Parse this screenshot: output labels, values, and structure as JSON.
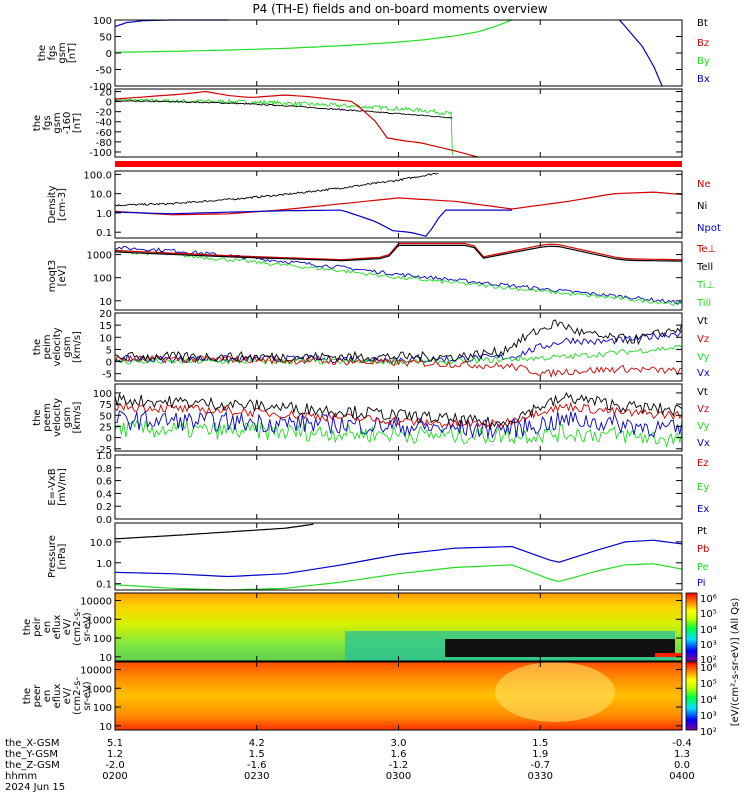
{
  "title": "P4 (TH-E) fields and on-board moments overview",
  "colors": {
    "black": "#000000",
    "red": "#d40000",
    "green": "#22dd22",
    "blue": "#0000cc",
    "bar": "#ff0000"
  },
  "chart_data": [
    {
      "id": "fgs",
      "type": "line",
      "ylabel": [
        "the",
        "fgs",
        "gsm",
        "[nT]"
      ],
      "yticks": [
        "100",
        "50",
        "0",
        "-50",
        "-100"
      ],
      "ylim": [
        -100,
        100
      ],
      "log": false,
      "legend": [
        {
          "label": "Bt",
          "color": "#000000"
        },
        {
          "label": "Bz",
          "color": "#d40000"
        },
        {
          "label": "By",
          "color": "#22dd22"
        },
        {
          "label": "Bx",
          "color": "#0000cc"
        }
      ],
      "series": [
        {
          "color": "#0000cc",
          "x": [
            0,
            2,
            5,
            10,
            20
          ],
          "y": [
            80,
            92,
            98,
            100,
            100
          ]
        },
        {
          "color": "#22dd22",
          "x": [
            0,
            10,
            20,
            30,
            40,
            50,
            55,
            60,
            64,
            67,
            70
          ],
          "y": [
            2,
            5,
            9,
            14,
            22,
            33,
            41,
            52,
            64,
            80,
            100
          ]
        },
        {
          "color": "#0000cc",
          "x": [
            89,
            91,
            93,
            95,
            96.5
          ],
          "y": [
            100,
            60,
            20,
            -40,
            -100
          ]
        }
      ]
    },
    {
      "id": "fgs2",
      "type": "line",
      "ylabel": [
        "the",
        "fgs",
        "gsm",
        "-160",
        "[nT]"
      ],
      "yticks": [
        "20",
        "0",
        "-20",
        "-40",
        "-60",
        "-80",
        "-100"
      ],
      "ylim": [
        -110,
        25
      ],
      "log": false,
      "legend": [],
      "series": [
        {
          "color": "#22dd22",
          "noise": 4,
          "x": [
            0,
            10,
            20,
            30,
            40,
            50,
            55,
            59.4,
            59.5
          ],
          "y": [
            3,
            1,
            0,
            -3,
            -8,
            -14,
            -18,
            -24,
            -110
          ]
        },
        {
          "color": "#000000",
          "noise": 1.2,
          "x": [
            0,
            10,
            20,
            30,
            40,
            50,
            59.5
          ],
          "y": [
            1,
            0,
            -3,
            -8,
            -16,
            -24,
            -32
          ]
        },
        {
          "color": "#d40000",
          "x": [
            0,
            6,
            12,
            16,
            20,
            24,
            30,
            34,
            38,
            42,
            46,
            48,
            51,
            54,
            57,
            60,
            64
          ],
          "y": [
            5,
            10,
            15,
            20,
            12,
            8,
            13,
            10,
            5,
            0,
            -40,
            -72,
            -78,
            -82,
            -90,
            -98,
            -110
          ]
        }
      ]
    },
    {
      "id": "density",
      "type": "line",
      "ylabel": [
        "Density",
        "[cm-3]"
      ],
      "yticks": [
        "100.0",
        "10.0",
        "1.0",
        "0.1"
      ],
      "ylim": [
        0.05,
        150
      ],
      "log": true,
      "legend": [
        {
          "label": "Ne",
          "color": "#d40000"
        },
        {
          "label": "Ni",
          "color": "#000000"
        },
        {
          "label": "Npot",
          "color": "#0000cc"
        }
      ],
      "series": [
        {
          "color": "#000000",
          "noise": 0.05,
          "x": [
            0,
            10,
            20,
            30,
            40,
            50,
            57
          ],
          "y": [
            2.5,
            3,
            5,
            9,
            20,
            50,
            120
          ]
        },
        {
          "color": "#d40000",
          "x": [
            0,
            10,
            20,
            30,
            40,
            50,
            60,
            70,
            80,
            88,
            95,
            100
          ],
          "y": [
            1.2,
            0.8,
            0.9,
            1.5,
            3,
            6,
            4,
            1.6,
            4,
            10,
            12,
            9
          ]
        },
        {
          "color": "#0000cc",
          "x": [
            0,
            10,
            20,
            30,
            40,
            46,
            49,
            52,
            55,
            58,
            62,
            70
          ],
          "y": [
            1.1,
            0.9,
            1.1,
            1.3,
            1.4,
            0.35,
            0.12,
            0.1,
            0.06,
            1.4,
            1.4,
            1.4
          ]
        }
      ]
    },
    {
      "id": "moqt3",
      "type": "line",
      "ylabel": [
        "moqt3",
        "[eV]"
      ],
      "yticks": [
        "1000",
        "100",
        "10"
      ],
      "ylim": [
        4,
        3500
      ],
      "log": true,
      "legend": [
        {
          "label": "Te⊥",
          "color": "#d40000"
        },
        {
          "label": "Tell",
          "color": "#000000"
        },
        {
          "label": "Ti⊥",
          "color": "#22dd22"
        },
        {
          "label": "Till",
          "color": "#22dd22"
        }
      ],
      "series": [
        {
          "color": "#0000cc",
          "noise": 0.08,
          "x": [
            0,
            10,
            20,
            30,
            40,
            50,
            60,
            70,
            80,
            90,
            100
          ],
          "y": [
            2000,
            1500,
            900,
            500,
            280,
            140,
            80,
            45,
            25,
            15,
            8
          ]
        },
        {
          "color": "#22dd22",
          "noise": 0.08,
          "x": [
            0,
            10,
            20,
            30,
            40,
            50,
            60,
            70,
            80,
            90,
            100
          ],
          "y": [
            1400,
            1000,
            600,
            350,
            200,
            100,
            60,
            35,
            20,
            12,
            7
          ]
        },
        {
          "color": "#d40000",
          "x": [
            0,
            20,
            40,
            48,
            50,
            63,
            65,
            76,
            78,
            89,
            91,
            100
          ],
          "y": [
            1500,
            900,
            600,
            800,
            3000,
            3000,
            800,
            2800,
            2800,
            700,
            650,
            600
          ]
        },
        {
          "color": "#000000",
          "x": [
            0,
            20,
            40,
            48,
            50,
            63,
            65,
            76,
            78,
            89,
            91,
            100
          ],
          "y": [
            1300,
            800,
            550,
            700,
            2500,
            2500,
            700,
            2300,
            2300,
            600,
            560,
            520
          ]
        }
      ]
    },
    {
      "id": "peim",
      "type": "line",
      "ylabel": [
        "the",
        "peim",
        "velocity",
        "gsm",
        "[km/s]"
      ],
      "yticks": [
        "20",
        "15",
        "10",
        "5",
        "0",
        "-5"
      ],
      "ylim": [
        -8,
        20
      ],
      "log": false,
      "legend": [
        {
          "label": "Vt",
          "color": "#000000"
        },
        {
          "label": "Vz",
          "color": "#d40000"
        },
        {
          "label": "Vy",
          "color": "#22dd22"
        },
        {
          "label": "Vx",
          "color": "#0000cc"
        }
      ],
      "series": [
        {
          "color": "#0000cc",
          "noise": 1.5,
          "x": [
            0,
            20,
            40,
            60,
            70,
            75,
            80,
            85,
            90,
            100
          ],
          "y": [
            1,
            1,
            1,
            1,
            2,
            6,
            9,
            8,
            9,
            12
          ]
        },
        {
          "color": "#22dd22",
          "noise": 1.2,
          "x": [
            0,
            20,
            40,
            60,
            70,
            80,
            90,
            100
          ],
          "y": [
            0,
            0,
            0,
            0,
            1,
            2,
            4,
            6
          ]
        },
        {
          "color": "#d40000",
          "noise": 1.5,
          "x": [
            0,
            20,
            40,
            60,
            70,
            76,
            80,
            90,
            100
          ],
          "y": [
            1,
            1,
            0,
            -1,
            -2,
            -5,
            -4,
            -3,
            -4
          ]
        },
        {
          "color": "#000000",
          "noise": 2,
          "x": [
            0,
            20,
            40,
            60,
            68,
            74,
            78,
            82,
            86,
            92,
            100
          ],
          "y": [
            2,
            2,
            2,
            2,
            4,
            12,
            16,
            12,
            10,
            9,
            14
          ]
        }
      ]
    },
    {
      "id": "peem",
      "type": "line",
      "ylabel": [
        "the",
        "peem",
        "velocity",
        "gsm",
        "[km/s]"
      ],
      "yticks": [
        "100",
        "75",
        "50",
        "25",
        "0",
        "-25"
      ],
      "ylim": [
        -30,
        120
      ],
      "log": false,
      "legend": [
        {
          "label": "Vt",
          "color": "#000000"
        },
        {
          "label": "Vz",
          "color": "#d40000"
        },
        {
          "label": "Vy",
          "color": "#22dd22"
        },
        {
          "label": "Vx",
          "color": "#0000cc"
        }
      ],
      "series": [
        {
          "color": "#22dd22",
          "noise": 20,
          "x": [
            0,
            20,
            40,
            60,
            70,
            80,
            90,
            100
          ],
          "y": [
            20,
            15,
            10,
            5,
            5,
            10,
            5,
            -5
          ]
        },
        {
          "color": "#0000cc",
          "noise": 22,
          "x": [
            0,
            20,
            40,
            60,
            70,
            80,
            90,
            100
          ],
          "y": [
            40,
            35,
            30,
            20,
            20,
            40,
            30,
            15
          ]
        },
        {
          "color": "#d40000",
          "noise": 10,
          "x": [
            0,
            20,
            40,
            60,
            68,
            75,
            80,
            90,
            100
          ],
          "y": [
            70,
            60,
            45,
            30,
            30,
            60,
            70,
            55,
            50
          ]
        },
        {
          "color": "#000000",
          "noise": 14,
          "x": [
            0,
            20,
            40,
            60,
            68,
            75,
            80,
            90,
            100
          ],
          "y": [
            85,
            75,
            60,
            40,
            30,
            70,
            90,
            70,
            60
          ]
        }
      ]
    },
    {
      "id": "efield",
      "type": "line",
      "ylabel": [
        "E=-VxB",
        "[mV/m]"
      ],
      "yticks": [
        "1.0",
        "0.8",
        "0.6",
        "0.4",
        "0.2",
        "0.0"
      ],
      "ylim": [
        0,
        1
      ],
      "log": false,
      "legend": [
        {
          "label": "Ez",
          "color": "#d40000"
        },
        {
          "label": "Ey",
          "color": "#22dd22"
        },
        {
          "label": "Ex",
          "color": "#0000cc"
        }
      ],
      "series": []
    },
    {
      "id": "pressure",
      "type": "line",
      "ylabel": [
        "Pressure",
        "[nPa]"
      ],
      "yticks": [
        "10.0",
        "1.0",
        "0.1"
      ],
      "ylim": [
        0.05,
        80
      ],
      "log": true,
      "legend": [
        {
          "label": "Pt",
          "color": "#000000"
        },
        {
          "label": "Pb",
          "color": "#d40000"
        },
        {
          "label": "Pe",
          "color": "#22dd22"
        },
        {
          "label": "Pi",
          "color": "#0000cc"
        }
      ],
      "series": [
        {
          "color": "#000000",
          "x": [
            0,
            10,
            20,
            30,
            35
          ],
          "y": [
            14,
            20,
            30,
            45,
            70
          ]
        },
        {
          "color": "#0000cc",
          "x": [
            0,
            10,
            20,
            30,
            40,
            50,
            60,
            70,
            78,
            85,
            90,
            95,
            100
          ],
          "y": [
            0.35,
            0.3,
            0.22,
            0.3,
            0.8,
            2.5,
            5,
            6,
            1,
            4,
            10,
            12,
            8
          ]
        },
        {
          "color": "#22dd22",
          "x": [
            0,
            10,
            20,
            30,
            40,
            50,
            60,
            70,
            78,
            85,
            90,
            95,
            100
          ],
          "y": [
            0.09,
            0.06,
            0.05,
            0.06,
            0.12,
            0.3,
            0.6,
            0.8,
            0.12,
            0.4,
            0.8,
            0.9,
            0.5
          ]
        }
      ]
    },
    {
      "id": "peir",
      "type": "heatmap",
      "ylabel": [
        "the",
        "peir",
        "en",
        "eflux",
        "eV/",
        "(cm2-s-",
        "sr-eV)"
      ],
      "yticks": [
        "10000",
        "1000",
        "100",
        "10"
      ],
      "ylim": [
        6,
        25000
      ],
      "log": true
    },
    {
      "id": "peer",
      "type": "heatmap",
      "ylabel": [
        "the",
        "peer",
        "en",
        "eflux",
        "eV/",
        "(cm2-s-",
        "sr-eV)"
      ],
      "yticks": [
        "10000",
        "1000",
        "100",
        "10"
      ],
      "ylim": [
        6,
        25000
      ],
      "log": true
    }
  ],
  "colorbar": {
    "ticks": [
      "10⁶",
      "10⁵",
      "10⁴",
      "10³",
      "10²"
    ],
    "label": "[eV/(cm²-s-sr-eV)] (All Qs)"
  },
  "xaxis": {
    "ticks": [
      "0200",
      "0230",
      "0300",
      "0330",
      "0400"
    ],
    "rows": [
      {
        "label": "the_X-GSM",
        "values": [
          "5.1",
          "4.2",
          "3.0",
          "1.5",
          "-0.4"
        ]
      },
      {
        "label": "the_Y-GSM",
        "values": [
          "1.2",
          "1.5",
          "1.6",
          "1.9",
          "1.3"
        ]
      },
      {
        "label": "the_Z-GSM",
        "values": [
          "-2.0",
          "-1.6",
          "-1.2",
          "-0.7",
          "0.0"
        ]
      },
      {
        "label": "hhmm",
        "values": [
          "0200",
          "0230",
          "0300",
          "0330",
          "0400"
        ]
      }
    ],
    "date": "2024 Jun 15"
  }
}
